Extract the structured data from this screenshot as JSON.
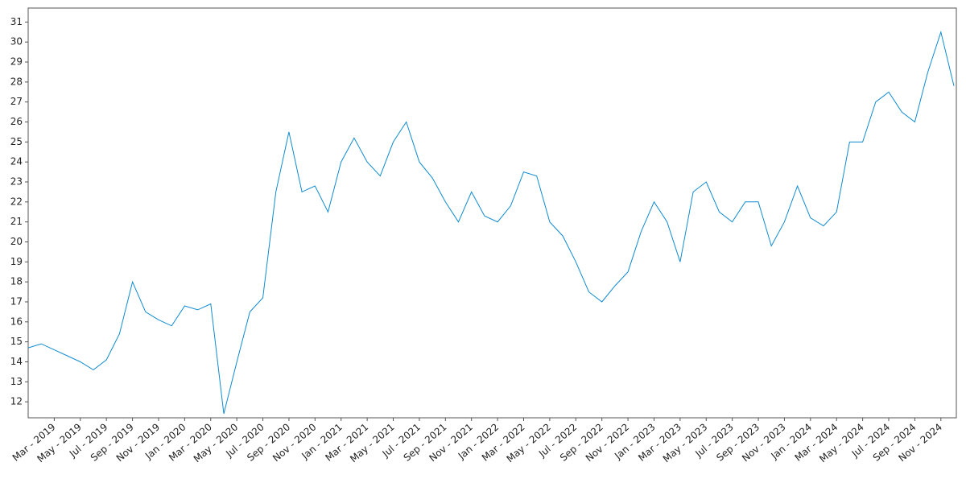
{
  "chart_data": {
    "type": "line",
    "categories": [
      null,
      null,
      "Mar - 2019",
      null,
      "May - 2019",
      null,
      "Jul - 2019",
      null,
      "Sep - 2019",
      null,
      "Nov - 2019",
      null,
      "Jan - 2020",
      null,
      "Mar - 2020",
      null,
      "May - 2020",
      null,
      "Jul - 2020",
      null,
      "Sep - 2020",
      null,
      "Nov - 2020",
      null,
      "Jan - 2021",
      null,
      "Mar - 2021",
      null,
      "May - 2021",
      null,
      "Jul - 2021",
      null,
      "Sep - 2021",
      null,
      "Nov - 2021",
      null,
      "Jan - 2022",
      null,
      "Mar - 2022",
      null,
      "May - 2022",
      null,
      "Jul - 2022",
      null,
      "Sep - 2022",
      null,
      "Nov - 2022",
      null,
      "Jan - 2023",
      null,
      "Mar - 2023",
      null,
      "May - 2023",
      null,
      "Jul - 2023",
      null,
      "Sep - 2023",
      null,
      "Nov - 2023",
      null,
      "Jan - 2024",
      null,
      "Mar - 2024",
      null,
      "May - 2024",
      null,
      "Jul - 2024",
      null,
      "Sep - 2024",
      null,
      "Nov - 2024",
      null
    ],
    "series": [
      {
        "color": "#0f8bd0",
        "values": [
          14.7,
          14.9,
          14.6,
          14.3,
          14.0,
          13.6,
          14.1,
          15.4,
          18.0,
          16.5,
          16.1,
          15.8,
          16.8,
          16.6,
          16.9,
          11.4,
          14.0,
          16.5,
          17.2,
          22.5,
          25.5,
          22.5,
          22.8,
          21.5,
          24.0,
          25.2,
          24.0,
          23.3,
          25.0,
          26.0,
          24.0,
          23.2,
          22.0,
          21.0,
          22.5,
          21.3,
          21.0,
          21.8,
          23.5,
          23.3,
          21.0,
          20.3,
          19.0,
          17.5,
          17.0,
          17.8,
          18.5,
          20.5,
          22.0,
          21.0,
          19.0,
          22.5,
          23.0,
          21.5,
          21.0,
          22.0,
          22.0,
          19.8,
          21.0,
          22.8,
          21.2,
          20.8,
          21.5,
          25.0,
          25.0,
          27.0,
          27.5,
          26.5,
          26.0,
          28.5,
          30.5,
          27.8
        ]
      }
    ],
    "ylim": [
      11.2,
      31.7
    ],
    "yticks": [
      12,
      13,
      14,
      15,
      16,
      17,
      18,
      19,
      20,
      21,
      22,
      23,
      24,
      25,
      26,
      27,
      28,
      29,
      30,
      31
    ],
    "grid": false
  }
}
